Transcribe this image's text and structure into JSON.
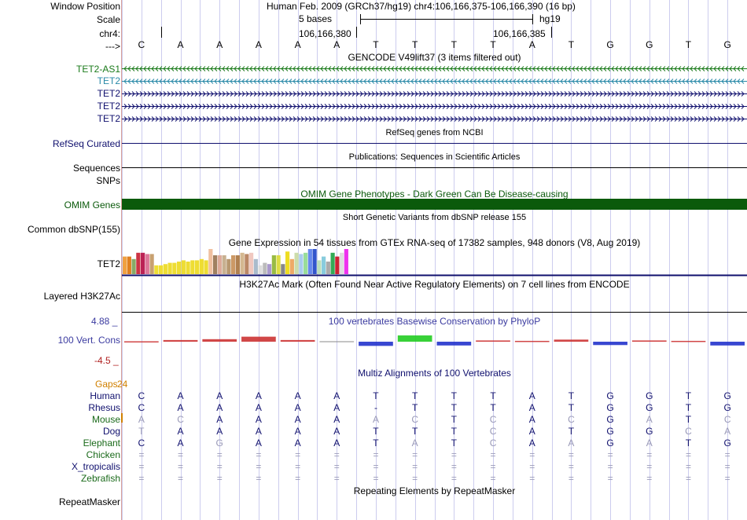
{
  "header": {
    "window_position_label": "Window Position",
    "assembly_text": "Human Feb. 2009 (GRCh37/hg19)   chr4:106,166,375-106,166,390 (16 bp)",
    "scale_label": "Scale",
    "scale_text": "5 bases",
    "scale_db": "hg19",
    "chrom_label": "chr4:",
    "coord_1": "106,166,380",
    "coord_2": "106,166,385",
    "strand_label": "--->"
  },
  "bases": [
    "C",
    "A",
    "A",
    "A",
    "A",
    "A",
    "T",
    "T",
    "T",
    "T",
    "A",
    "T",
    "G",
    "G",
    "T",
    "G"
  ],
  "gencode": {
    "title": "GENCODE V49lift37 (3 items filtered out)",
    "tracks": [
      {
        "label": "TET2-AS1",
        "color": "#1a7a1a",
        "arrow": "<"
      },
      {
        "label": "TET2",
        "color": "#2a8aa8",
        "arrow": "<"
      },
      {
        "label": "TET2",
        "color": "#10106e",
        "arrow": ">"
      },
      {
        "label": "TET2",
        "color": "#10106e",
        "arrow": ">"
      },
      {
        "label": "TET2",
        "color": "#10106e",
        "arrow": ">"
      }
    ]
  },
  "refseq": {
    "title": "RefSeq genes from NCBI",
    "label": "RefSeq Curated",
    "color": "#10106e"
  },
  "publications": {
    "title": "Publications: Sequences in Scientific Articles",
    "label": "Sequences"
  },
  "snps_label": "SNPs",
  "omim": {
    "title": "OMIM Gene Phenotypes - Dark Green Can Be Disease-causing",
    "label": "OMIM Genes",
    "color": "#0b5a0b"
  },
  "dbsnp": {
    "title": "Short Genetic Variants from dbSNP release 155",
    "label": "Common dbSNP(155)"
  },
  "gtex": {
    "title": "Gene Expression in 54 tissues from GTEx RNA-seq of 17382 samples, 948 donors (V8, Aug 2019)",
    "label": "TET2",
    "bars": [
      {
        "v": 0.7,
        "c": "#f0a040"
      },
      {
        "v": 0.7,
        "c": "#e08020"
      },
      {
        "v": 0.6,
        "c": "#88aa66"
      },
      {
        "v": 0.85,
        "c": "#cc3344"
      },
      {
        "v": 0.85,
        "c": "#bb2255"
      },
      {
        "v": 0.8,
        "c": "#dd7799"
      },
      {
        "v": 0.8,
        "c": "#c8a070"
      },
      {
        "v": 0.35,
        "c": "#eedd33"
      },
      {
        "v": 0.35,
        "c": "#eedd33"
      },
      {
        "v": 0.4,
        "c": "#eedd33"
      },
      {
        "v": 0.45,
        "c": "#eedd33"
      },
      {
        "v": 0.45,
        "c": "#eedd33"
      },
      {
        "v": 0.5,
        "c": "#eedd33"
      },
      {
        "v": 0.55,
        "c": "#eedd33"
      },
      {
        "v": 0.5,
        "c": "#eedd33"
      },
      {
        "v": 0.55,
        "c": "#eedd33"
      },
      {
        "v": 0.55,
        "c": "#eedd33"
      },
      {
        "v": 0.6,
        "c": "#eedd33"
      },
      {
        "v": 0.55,
        "c": "#eedd33"
      },
      {
        "v": 1.0,
        "c": "#f0c0a0"
      },
      {
        "v": 0.75,
        "c": "#a08060"
      },
      {
        "v": 0.75,
        "c": "#ddaa99"
      },
      {
        "v": 0.75,
        "c": "#c8b090"
      },
      {
        "v": 0.6,
        "c": "#b89870"
      },
      {
        "v": 0.75,
        "c": "#cc9966"
      },
      {
        "v": 0.75,
        "c": "#b08050"
      },
      {
        "v": 0.85,
        "c": "#d4b890"
      },
      {
        "v": 0.8,
        "c": "#bb8866"
      },
      {
        "v": 0.85,
        "c": "#f0c8c0"
      },
      {
        "v": 0.6,
        "c": "#aabbcc"
      },
      {
        "v": 0.35,
        "c": "#dddddd"
      },
      {
        "v": 0.45,
        "c": "#bbbbbb"
      },
      {
        "v": 0.4,
        "c": "#aa99cc"
      },
      {
        "v": 0.75,
        "c": "#99bb44"
      },
      {
        "v": 0.75,
        "c": "#dddd44"
      },
      {
        "v": 0.4,
        "c": "#888888"
      },
      {
        "v": 0.9,
        "c": "#eedd22"
      },
      {
        "v": 0.6,
        "c": "#eeaa66"
      },
      {
        "v": 0.85,
        "c": "#ccddaa"
      },
      {
        "v": 0.8,
        "c": "#aaccee"
      },
      {
        "v": 0.85,
        "c": "#99dd99"
      },
      {
        "v": 1.0,
        "c": "#6688ee"
      },
      {
        "v": 1.0,
        "c": "#3355cc"
      },
      {
        "v": 0.55,
        "c": "#bbddbb"
      },
      {
        "v": 0.7,
        "c": "#88ccdd"
      },
      {
        "v": 0.5,
        "c": "#aaaaaa"
      },
      {
        "v": 0.85,
        "c": "#33aa55"
      },
      {
        "v": 0.7,
        "c": "#cc2233"
      },
      {
        "v": 0.85,
        "c": "#dddddd"
      },
      {
        "v": 1.0,
        "c": "#ee33ee"
      }
    ]
  },
  "h3k27": {
    "title": "H3K27Ac Mark (Often Found Near Active Regulatory Elements) on 7 cell lines from ENCODE",
    "label": "Layered H3K27Ac"
  },
  "phylop": {
    "title": "100 vertebrates Basewise Conservation by PhyloP",
    "label": "100 Vert. Cons",
    "max_label": "4.88 _",
    "min_label": "-4.5 _",
    "range": [
      -4.5,
      4.88
    ],
    "values": [
      0.1,
      0.4,
      0.6,
      1.2,
      0.4,
      0.0,
      -1.0,
      1.5,
      -0.9,
      0.3,
      0.2,
      0.5,
      -0.8,
      0.3,
      0.2,
      -0.9
    ],
    "colors": {
      "neg": "#2233cc",
      "pos_low": "#cc3333",
      "conserved": "#22cc22",
      "flat": "#888888"
    }
  },
  "multiz": {
    "title": "Multiz Alignments of 100 Vertebrates",
    "gaps_label": "Gaps",
    "gaps_value": "24",
    "species": [
      {
        "name": "Human",
        "color": "#10106e",
        "seq": [
          "C",
          "A",
          "A",
          "A",
          "A",
          "A",
          "T",
          "T",
          "T",
          "T",
          "A",
          "T",
          "G",
          "G",
          "T",
          "G"
        ],
        "dim": []
      },
      {
        "name": "Rhesus",
        "color": "#10106e",
        "seq": [
          "C",
          "A",
          "A",
          "A",
          "A",
          "A",
          "-",
          "T",
          "T",
          "T",
          "A",
          "T",
          "G",
          "G",
          "T",
          "G"
        ],
        "dim": []
      },
      {
        "name": "Mouse",
        "color": "#1a6a1a",
        "seq": [
          "A",
          "C",
          "A",
          "A",
          "A",
          "A",
          "A",
          "C",
          "T",
          "C",
          "A",
          "C",
          "G",
          "A",
          "T",
          "C"
        ],
        "dim": [
          0,
          1,
          6,
          7,
          9,
          11,
          13,
          15
        ]
      },
      {
        "name": "Dog",
        "color": "#10106e",
        "seq": [
          "T",
          "A",
          "A",
          "A",
          "A",
          "A",
          "T",
          "T",
          "T",
          "C",
          "A",
          "T",
          "G",
          "G",
          "C",
          "A"
        ],
        "dim": [
          0,
          9,
          14,
          15
        ]
      },
      {
        "name": "Elephant",
        "color": "#1a6a1a",
        "seq": [
          "C",
          "A",
          "G",
          "A",
          "A",
          "A",
          "T",
          "A",
          "T",
          "C",
          "A",
          "A",
          "G",
          "A",
          "T",
          "G"
        ],
        "dim": [
          2,
          7,
          9,
          11,
          13
        ]
      },
      {
        "name": "Chicken",
        "color": "#1a6a1a",
        "seq": [
          "=",
          "=",
          "=",
          "=",
          "=",
          "=",
          "=",
          "=",
          "=",
          "=",
          "=",
          "=",
          "=",
          "=",
          "=",
          "="
        ],
        "dim": "all"
      },
      {
        "name": "X_tropicalis",
        "color": "#10106e",
        "seq": [
          "=",
          "=",
          "=",
          "=",
          "=",
          "=",
          "=",
          "=",
          "=",
          "=",
          "=",
          "=",
          "=",
          "=",
          "=",
          "="
        ],
        "dim": "all"
      },
      {
        "name": "Zebrafish",
        "color": "#1a6a1a",
        "seq": [
          "=",
          "=",
          "=",
          "=",
          "=",
          "=",
          "=",
          "=",
          "=",
          "=",
          "=",
          "=",
          "=",
          "=",
          "=",
          "="
        ],
        "dim": "all"
      }
    ]
  },
  "repeatmasker": {
    "title": "Repeating Elements by RepeatMasker",
    "label": "RepeatMasker"
  },
  "colors": {
    "grid": "#ccccee",
    "navy": "#10106e",
    "dark_green": "#0b5a0b",
    "gaps_orange": "#d08000"
  }
}
